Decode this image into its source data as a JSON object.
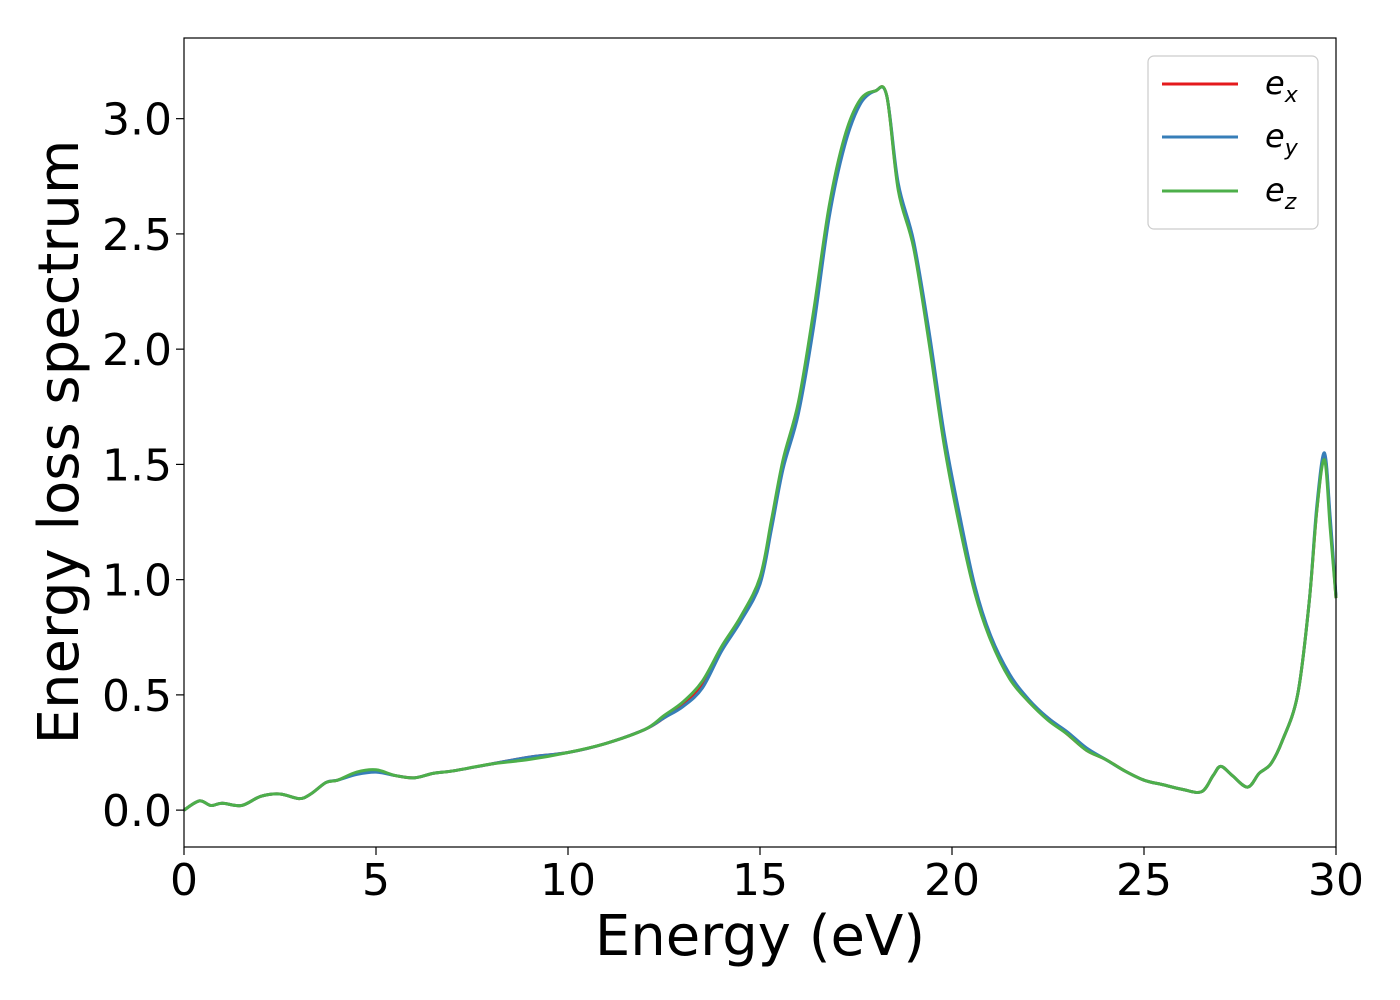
{
  "chart_data": {
    "type": "line",
    "title": "",
    "xlabel": "Energy (eV)",
    "ylabel": "Energy loss spectrum",
    "xlim": [
      0,
      30
    ],
    "ylim": [
      -0.16,
      3.35
    ],
    "xticks": [
      0,
      5,
      10,
      15,
      20,
      25,
      30
    ],
    "xtick_labels": [
      "0",
      "5",
      "10",
      "15",
      "20",
      "25",
      "30"
    ],
    "yticks": [
      0.0,
      0.5,
      1.0,
      1.5,
      2.0,
      2.5,
      3.0
    ],
    "ytick_labels": [
      "0.0",
      "0.5",
      "1.0",
      "1.5",
      "2.0",
      "2.5",
      "3.0"
    ],
    "grid": false,
    "legend_position": "top-right",
    "series": [
      {
        "name": "e_x",
        "label_base": "e",
        "label_sub": "x",
        "color": "#e41a1c",
        "x": [
          0,
          0.4,
          0.7,
          1.0,
          1.5,
          2.0,
          2.5,
          3.0,
          3.3,
          3.7,
          4.0,
          4.5,
          5.0,
          5.5,
          6.0,
          6.5,
          7.0,
          8.0,
          9.0,
          10.0,
          11.0,
          12.0,
          12.5,
          13.0,
          13.5,
          14.0,
          14.5,
          15.0,
          15.3,
          15.6,
          16.0,
          16.4,
          16.8,
          17.2,
          17.6,
          18.0,
          18.3,
          18.6,
          19.0,
          19.4,
          19.8,
          20.2,
          20.6,
          21.0,
          21.5,
          22.0,
          22.5,
          23.0,
          23.5,
          24.0,
          24.5,
          25.0,
          25.5,
          26.0,
          26.5,
          26.8,
          27.0,
          27.3,
          27.7,
          28.0,
          28.3,
          28.6,
          29.0,
          29.3,
          29.5,
          29.7,
          29.85,
          30.0
        ],
        "y": [
          0.0,
          0.04,
          0.02,
          0.03,
          0.02,
          0.06,
          0.07,
          0.05,
          0.07,
          0.12,
          0.13,
          0.16,
          0.17,
          0.15,
          0.14,
          0.16,
          0.17,
          0.2,
          0.23,
          0.25,
          0.29,
          0.35,
          0.4,
          0.46,
          0.55,
          0.7,
          0.83,
          1.0,
          1.25,
          1.5,
          1.75,
          2.15,
          2.6,
          2.9,
          3.07,
          3.12,
          3.1,
          2.7,
          2.45,
          2.05,
          1.6,
          1.25,
          0.95,
          0.75,
          0.58,
          0.47,
          0.4,
          0.33,
          0.26,
          0.22,
          0.17,
          0.13,
          0.11,
          0.09,
          0.08,
          0.15,
          0.19,
          0.15,
          0.1,
          0.16,
          0.2,
          0.3,
          0.5,
          0.9,
          1.3,
          1.54,
          1.25,
          0.92
        ]
      },
      {
        "name": "e_y",
        "label_base": "e",
        "label_sub": "y",
        "color": "#377eb8",
        "x": [
          0,
          0.4,
          0.7,
          1.0,
          1.5,
          2.0,
          2.5,
          3.0,
          3.3,
          3.7,
          4.0,
          4.5,
          5.0,
          5.5,
          6.0,
          6.5,
          7.0,
          8.0,
          9.0,
          10.0,
          11.0,
          12.0,
          12.5,
          13.0,
          13.5,
          14.0,
          14.5,
          15.0,
          15.3,
          15.6,
          16.0,
          16.4,
          16.8,
          17.2,
          17.6,
          18.0,
          18.3,
          18.6,
          19.0,
          19.4,
          19.8,
          20.2,
          20.6,
          21.0,
          21.5,
          22.0,
          22.5,
          23.0,
          23.5,
          24.0,
          24.5,
          25.0,
          25.5,
          26.0,
          26.5,
          26.8,
          27.0,
          27.3,
          27.7,
          28.0,
          28.3,
          28.6,
          29.0,
          29.3,
          29.5,
          29.7,
          29.85,
          30.0
        ],
        "y": [
          0.0,
          0.04,
          0.02,
          0.03,
          0.02,
          0.06,
          0.07,
          0.05,
          0.07,
          0.12,
          0.13,
          0.155,
          0.165,
          0.15,
          0.14,
          0.16,
          0.17,
          0.2,
          0.23,
          0.25,
          0.29,
          0.35,
          0.4,
          0.45,
          0.53,
          0.69,
          0.82,
          0.98,
          1.22,
          1.48,
          1.72,
          2.1,
          2.57,
          2.88,
          3.06,
          3.12,
          3.1,
          2.72,
          2.47,
          2.08,
          1.63,
          1.28,
          0.97,
          0.76,
          0.59,
          0.48,
          0.4,
          0.34,
          0.27,
          0.22,
          0.17,
          0.13,
          0.11,
          0.09,
          0.08,
          0.15,
          0.19,
          0.15,
          0.1,
          0.16,
          0.2,
          0.3,
          0.5,
          0.9,
          1.32,
          1.55,
          1.27,
          0.93
        ]
      },
      {
        "name": "e_z",
        "label_base": "e",
        "label_sub": "z",
        "color": "#4daf4a",
        "x": [
          0,
          0.4,
          0.7,
          1.0,
          1.5,
          2.0,
          2.5,
          3.0,
          3.3,
          3.7,
          4.0,
          4.5,
          5.0,
          5.5,
          6.0,
          6.5,
          7.0,
          8.0,
          9.0,
          10.0,
          11.0,
          12.0,
          12.5,
          13.0,
          13.5,
          14.0,
          14.5,
          15.0,
          15.3,
          15.6,
          16.0,
          16.4,
          16.8,
          17.2,
          17.6,
          18.0,
          18.3,
          18.6,
          19.0,
          19.4,
          19.8,
          20.2,
          20.6,
          21.0,
          21.5,
          22.0,
          22.5,
          23.0,
          23.5,
          24.0,
          24.5,
          25.0,
          25.5,
          26.0,
          26.5,
          26.8,
          27.0,
          27.3,
          27.7,
          28.0,
          28.3,
          28.6,
          29.0,
          29.3,
          29.5,
          29.7,
          29.85,
          30.0
        ],
        "y": [
          0.0,
          0.04,
          0.02,
          0.03,
          0.02,
          0.06,
          0.07,
          0.05,
          0.07,
          0.12,
          0.13,
          0.165,
          0.175,
          0.15,
          0.14,
          0.16,
          0.17,
          0.2,
          0.22,
          0.25,
          0.29,
          0.35,
          0.41,
          0.47,
          0.56,
          0.71,
          0.84,
          1.01,
          1.26,
          1.52,
          1.77,
          2.17,
          2.62,
          2.92,
          3.08,
          3.12,
          3.1,
          2.69,
          2.44,
          2.03,
          1.58,
          1.23,
          0.94,
          0.74,
          0.57,
          0.47,
          0.39,
          0.33,
          0.26,
          0.22,
          0.17,
          0.13,
          0.11,
          0.09,
          0.08,
          0.15,
          0.19,
          0.15,
          0.1,
          0.16,
          0.2,
          0.3,
          0.5,
          0.9,
          1.3,
          1.52,
          1.22,
          0.92
        ]
      }
    ]
  }
}
